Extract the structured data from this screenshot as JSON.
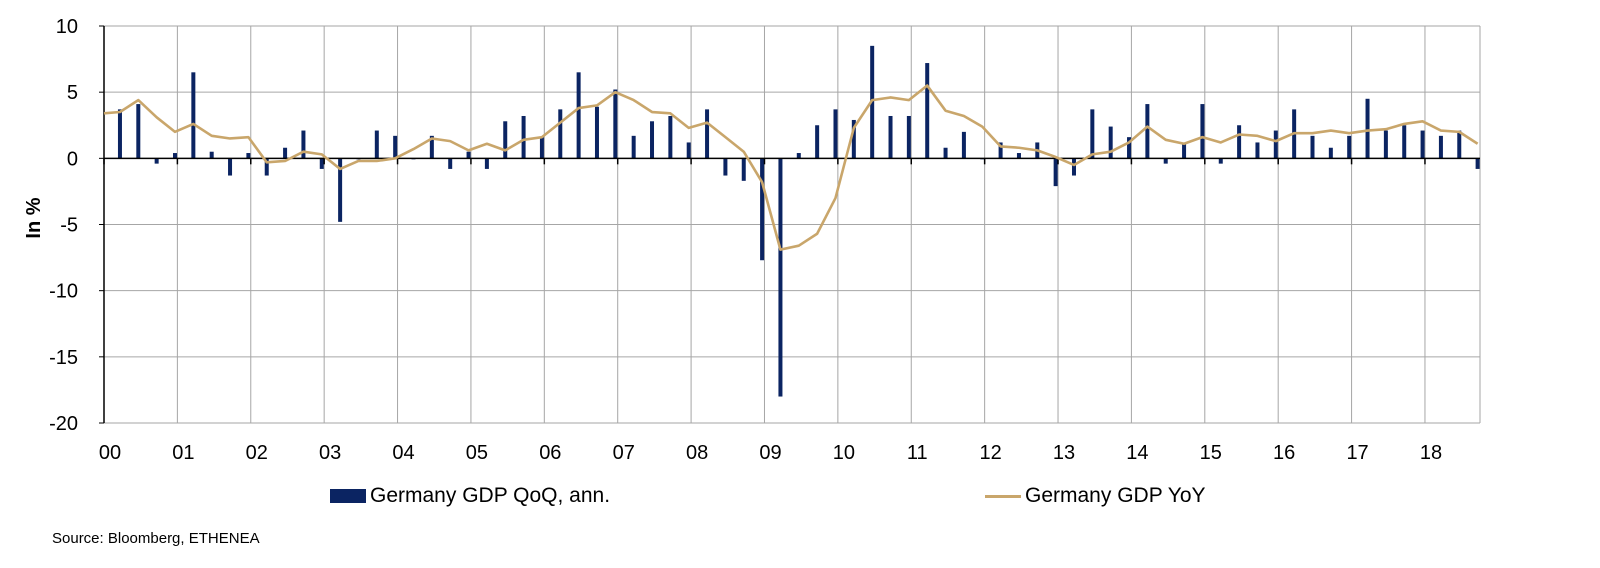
{
  "chart_data": {
    "type": "bar+line",
    "ylabel": "In %",
    "ylim": [
      -20,
      10
    ],
    "yticks": [
      10,
      5,
      0,
      -5,
      -10,
      -15,
      -20
    ],
    "xticks": [
      "00",
      "01",
      "02",
      "03",
      "04",
      "05",
      "06",
      "07",
      "08",
      "09",
      "10",
      "11",
      "12",
      "13",
      "14",
      "15",
      "16",
      "17",
      "18"
    ],
    "grid": true,
    "legend_position": "bottom",
    "x_start": "2000Q1",
    "x_end": "2018Q3",
    "colors": {
      "qoq": "#0b2462",
      "yoy": "#c9a66b",
      "grid": "#a6a6a6"
    },
    "series": [
      {
        "name": "Germany GDP QoQ, ann.",
        "type": "bar",
        "values": [
          3.7,
          4.1,
          -0.4,
          0.4,
          6.5,
          0.5,
          -1.3,
          0.4,
          -1.3,
          0.8,
          2.1,
          -0.8,
          -4.8,
          0.0,
          2.1,
          1.7,
          0.0,
          1.7,
          -0.8,
          0.5,
          -0.8,
          2.8,
          3.2,
          1.6,
          3.7,
          6.5,
          3.9,
          5.2,
          1.7,
          2.8,
          3.2,
          1.2,
          3.7,
          -1.3,
          -1.7,
          -7.7,
          -18.0,
          0.4,
          2.5,
          3.7,
          2.9,
          8.5,
          3.2,
          3.2,
          7.2,
          0.8,
          2.0,
          0.0,
          1.2,
          0.4,
          1.2,
          -2.1,
          -1.3,
          3.7,
          2.4,
          1.6,
          4.1,
          -0.4,
          1.1,
          4.1,
          -0.4,
          2.5,
          1.2,
          2.1,
          3.7,
          1.7,
          0.8,
          1.7,
          4.5,
          2.1,
          2.5,
          2.1,
          1.7,
          2.1,
          -0.8
        ]
      },
      {
        "name": "Germany GDP YoY",
        "type": "line",
        "start_value": 3.4,
        "values": [
          3.5,
          4.4,
          3.1,
          2.0,
          2.6,
          1.7,
          1.5,
          1.6,
          -0.3,
          -0.2,
          0.5,
          0.3,
          -0.8,
          -0.2,
          -0.2,
          0.0,
          0.7,
          1.5,
          1.3,
          0.6,
          1.1,
          0.6,
          1.4,
          1.6,
          2.7,
          3.8,
          4.0,
          5.0,
          4.4,
          3.5,
          3.4,
          2.3,
          2.7,
          1.6,
          0.5,
          -1.8,
          -6.9,
          -6.6,
          -5.7,
          -3.0,
          2.3,
          4.4,
          4.6,
          4.4,
          5.5,
          3.6,
          3.2,
          2.4,
          0.9,
          0.8,
          0.6,
          0.1,
          -0.5,
          0.3,
          0.5,
          1.2,
          2.4,
          1.4,
          1.1,
          1.6,
          1.2,
          1.8,
          1.7,
          1.3,
          1.9,
          1.9,
          2.1,
          1.9,
          2.1,
          2.2,
          2.6,
          2.8,
          2.1,
          2.0,
          1.1
        ]
      }
    ]
  },
  "source": "Source: Bloomberg, ETHENEA"
}
